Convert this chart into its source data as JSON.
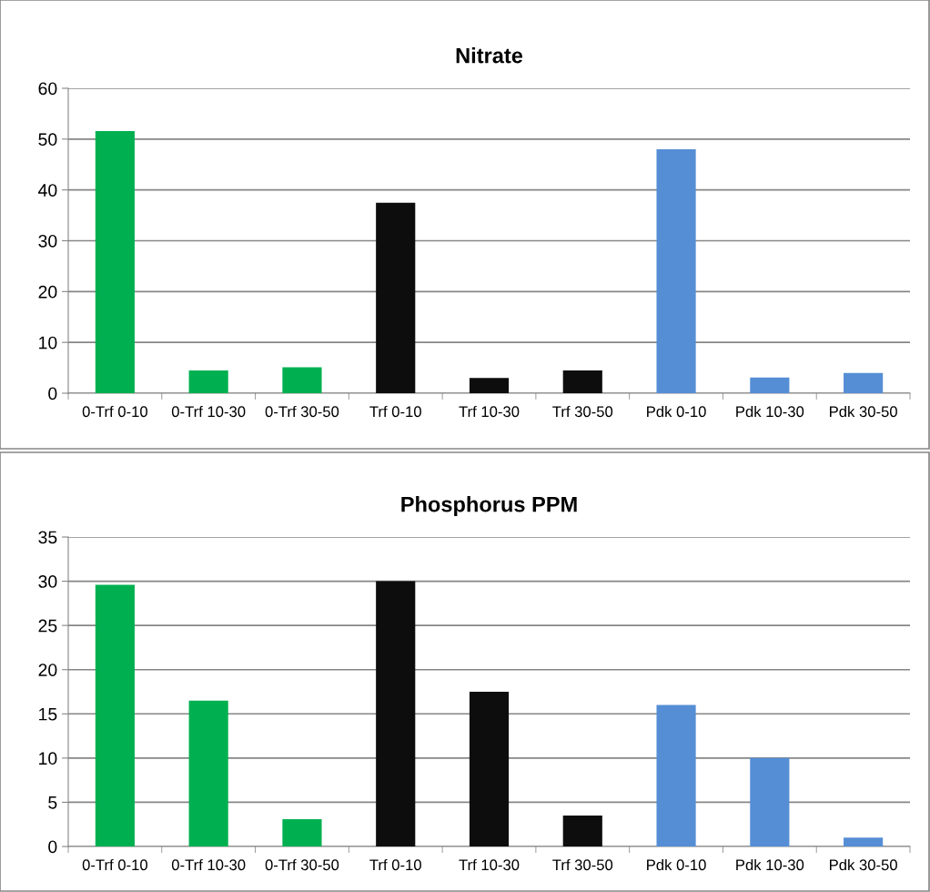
{
  "chart_data": [
    {
      "type": "bar",
      "title": "Nitrate",
      "categories": [
        "0-Trf 0-10",
        "0-Trf 10-30",
        "0-Trf 30-50",
        "Trf 0-10",
        "Trf 10-30",
        "Trf 30-50",
        "Pdk 0-10",
        "Pdk 10-30",
        "Pdk 30-50"
      ],
      "values": [
        51.6,
        4.5,
        5.1,
        37.5,
        3.0,
        4.5,
        48.0,
        3.1,
        4.0
      ],
      "colors": [
        "#00b050",
        "#00b050",
        "#00b050",
        "#0d0d0d",
        "#0d0d0d",
        "#0d0d0d",
        "#558ed5",
        "#558ed5",
        "#558ed5"
      ],
      "ylim": [
        0,
        60
      ],
      "yticks": [
        0,
        10,
        20,
        30,
        40,
        50,
        60
      ],
      "grid": "y"
    },
    {
      "type": "bar",
      "title": "Phosphorus PPM",
      "categories": [
        "0-Trf 0-10",
        "0-Trf 10-30",
        "0-Trf 30-50",
        "Trf 0-10",
        "Trf 10-30",
        "Trf 30-50",
        "Pdk 0-10",
        "Pdk 10-30",
        "Pdk 30-50"
      ],
      "values": [
        29.6,
        16.5,
        3.1,
        30.0,
        17.5,
        3.5,
        16.0,
        10.0,
        1.0
      ],
      "colors": [
        "#00b050",
        "#00b050",
        "#00b050",
        "#0d0d0d",
        "#0d0d0d",
        "#0d0d0d",
        "#558ed5",
        "#558ed5",
        "#558ed5"
      ],
      "ylim": [
        0,
        35
      ],
      "yticks": [
        0,
        5,
        10,
        15,
        20,
        25,
        30,
        35
      ],
      "grid": "y"
    }
  ]
}
